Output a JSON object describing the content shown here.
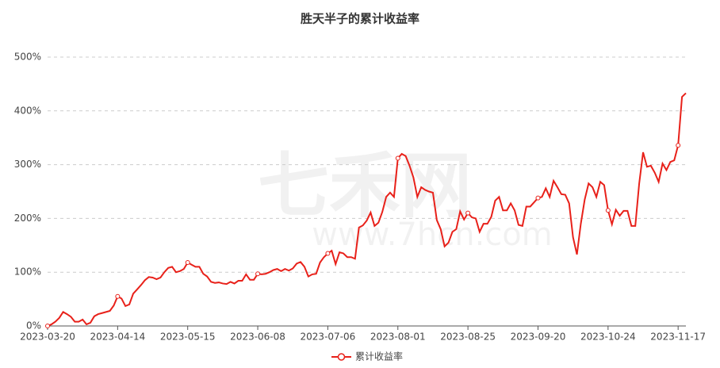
{
  "chart_data": {
    "type": "line",
    "title": "胜天半子的累计收益率",
    "watermark": [
      "七禾网",
      "www.7hcn.com"
    ],
    "categories": [
      "2023-03-20",
      null,
      null,
      null,
      null,
      null,
      null,
      null,
      null,
      null,
      null,
      null,
      null,
      null,
      null,
      null,
      null,
      null,
      "2023-04-14",
      null,
      null,
      null,
      null,
      null,
      null,
      null,
      null,
      null,
      null,
      null,
      null,
      null,
      null,
      null,
      null,
      null,
      "2023-05-15",
      null,
      null,
      null,
      null,
      null,
      null,
      null,
      null,
      null,
      null,
      null,
      null,
      null,
      null,
      null,
      null,
      null,
      "2023-06-08",
      null,
      null,
      null,
      null,
      null,
      null,
      null,
      null,
      null,
      null,
      null,
      null,
      null,
      null,
      null,
      null,
      null,
      "2023-07-06",
      null,
      null,
      null,
      null,
      null,
      null,
      null,
      null,
      null,
      null,
      null,
      null,
      null,
      null,
      null,
      null,
      null,
      "2023-08-01",
      null,
      null,
      null,
      null,
      null,
      null,
      null,
      null,
      null,
      null,
      null,
      null,
      null,
      null,
      null,
      null,
      null,
      "2023-08-25",
      null,
      null,
      null,
      null,
      null,
      null,
      null,
      null,
      null,
      null,
      null,
      null,
      null,
      null,
      null,
      null,
      null,
      "2023-09-20",
      null,
      null,
      null,
      null,
      null,
      null,
      null,
      null,
      null,
      null,
      null,
      null,
      null,
      null,
      null,
      null,
      null,
      "2023-10-24",
      null,
      null,
      null,
      null,
      null,
      null,
      null,
      null,
      null,
      null,
      null,
      null,
      null,
      null,
      null,
      null,
      null,
      "2023-11-17",
      null,
      null
    ],
    "series": [
      {
        "name": "累计收益率",
        "color": "#e8211a",
        "values": [
          0,
          3,
          8,
          15,
          26,
          22,
          17,
          8,
          8,
          12,
          3,
          6,
          18,
          22,
          24,
          26,
          28,
          38,
          55,
          51,
          37,
          40,
          60,
          68,
          76,
          85,
          91,
          90,
          87,
          90,
          100,
          108,
          110,
          100,
          102,
          106,
          118,
          114,
          110,
          110,
          97,
          92,
          82,
          80,
          81,
          79,
          78,
          82,
          79,
          84,
          84,
          96,
          86,
          86,
          97,
          96,
          97,
          100,
          104,
          106,
          102,
          106,
          103,
          107,
          116,
          119,
          110,
          92,
          96,
          97,
          118,
          128,
          135,
          140,
          115,
          137,
          135,
          128,
          128,
          125,
          183,
          187,
          196,
          211,
          186,
          192,
          212,
          240,
          248,
          240,
          312,
          320,
          316,
          298,
          276,
          240,
          258,
          253,
          250,
          248,
          197,
          180,
          148,
          155,
          175,
          180,
          213,
          198,
          210,
          202,
          200,
          175,
          190,
          190,
          203,
          233,
          240,
          215,
          215,
          228,
          215,
          188,
          186,
          222,
          222,
          230,
          238,
          240,
          256,
          240,
          270,
          258,
          245,
          244,
          228,
          165,
          133,
          190,
          235,
          265,
          258,
          240,
          268,
          262,
          215,
          189,
          216,
          205,
          214,
          214,
          186,
          186,
          265,
          323,
          296,
          298,
          285,
          268,
          302,
          290,
          305,
          308,
          336,
          426,
          433
        ]
      }
    ],
    "ylim": [
      0,
      500
    ],
    "yticks": [
      {
        "value": 0,
        "label": "0%"
      },
      {
        "value": 100,
        "label": "100%"
      },
      {
        "value": 200,
        "label": "200%"
      },
      {
        "value": 300,
        "label": "300%"
      },
      {
        "value": 400,
        "label": "400%"
      },
      {
        "value": 500,
        "label": "500%"
      }
    ],
    "grid": true,
    "legend": "bottom"
  }
}
